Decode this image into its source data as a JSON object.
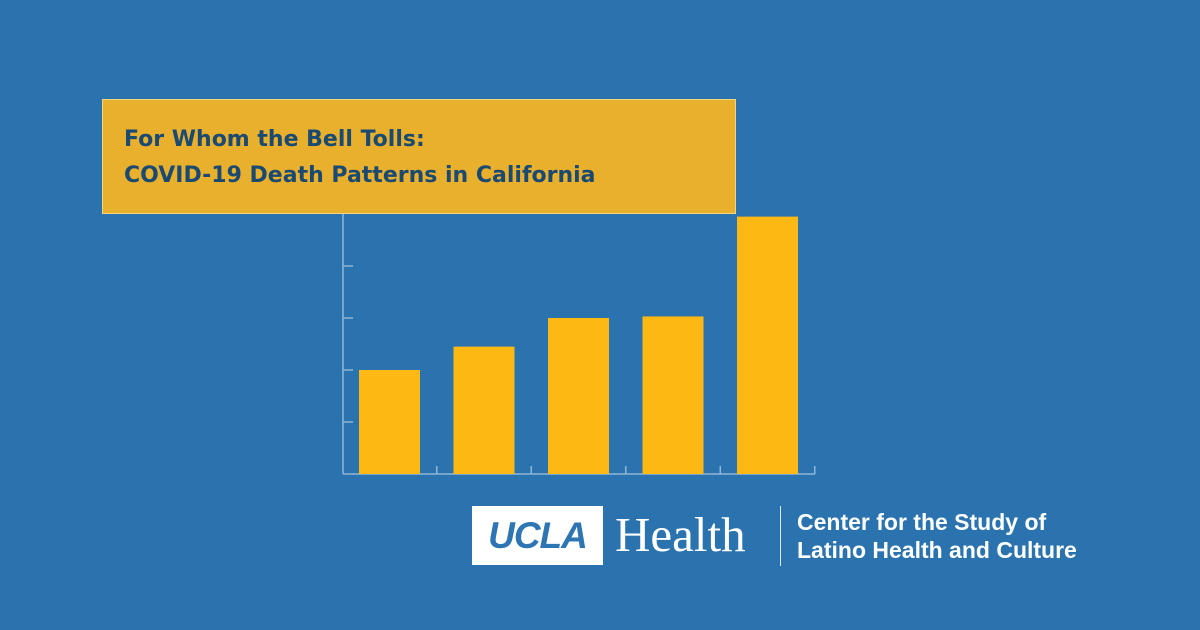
{
  "title": {
    "line1": "For Whom the Bell Tolls:",
    "line2": "COVID-19 Death Patterns in California"
  },
  "branding": {
    "logo": "UCLA",
    "wordmark": "Health",
    "center_line1": "Center for the Study of",
    "center_line2": "Latino Health and Culture"
  },
  "colors": {
    "background": "#2a73ae",
    "title_box": "#e8b02d",
    "title_text": "#1a4a72",
    "bars": "#fdb813",
    "axis": "#8fb6d8"
  },
  "chart_data": {
    "type": "bar",
    "title": "",
    "xlabel": "",
    "ylabel": "",
    "categories": [
      "",
      "",
      "",
      "",
      ""
    ],
    "values": [
      2.0,
      2.45,
      3.0,
      3.03,
      4.95
    ],
    "ylim": [
      0,
      5
    ],
    "yticks": [
      1,
      2,
      3,
      4
    ],
    "grid": false
  }
}
